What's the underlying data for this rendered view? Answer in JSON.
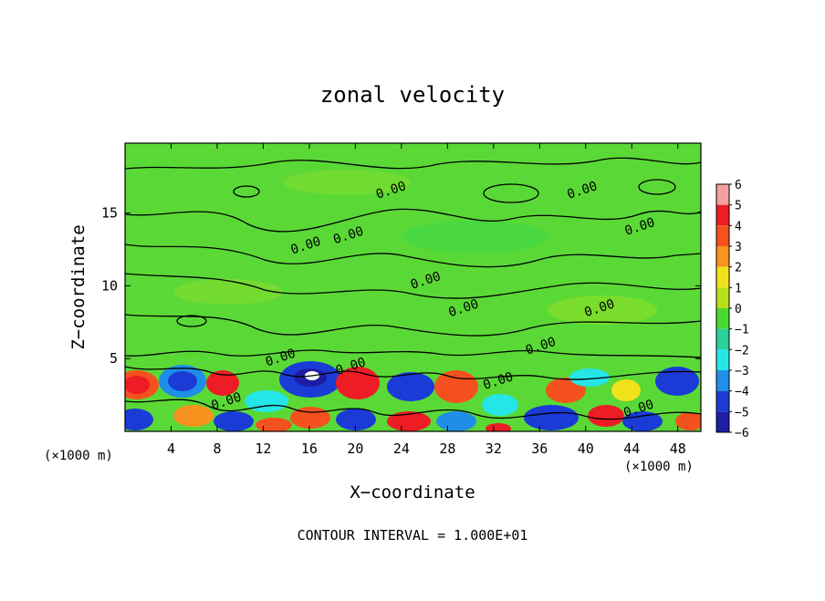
{
  "chart_data": {
    "type": "heatmap",
    "title": "zonal velocity",
    "xlabel": "X−coordinate",
    "ylabel": "Z−coordinate",
    "x_unit_left": "(×1000 m)",
    "x_unit_right": "(×1000 m)",
    "xlim": [
      0,
      50
    ],
    "ylim": [
      0,
      19.8
    ],
    "x_ticks": [
      {
        "value": 4,
        "label": "4"
      },
      {
        "value": 8,
        "label": "8"
      },
      {
        "value": 12,
        "label": "12"
      },
      {
        "value": 16,
        "label": "16"
      },
      {
        "value": 20,
        "label": "20"
      },
      {
        "value": 24,
        "label": "24"
      },
      {
        "value": 28,
        "label": "28"
      },
      {
        "value": 32,
        "label": "32"
      },
      {
        "value": 36,
        "label": "36"
      },
      {
        "value": 40,
        "label": "40"
      },
      {
        "value": 44,
        "label": "44"
      },
      {
        "value": 48,
        "label": "48"
      }
    ],
    "y_ticks": [
      {
        "value": 5,
        "label": "5"
      },
      {
        "value": 10,
        "label": "10"
      },
      {
        "value": 15,
        "label": "15"
      }
    ],
    "colorbar": {
      "levels": [
        {
          "value": 6,
          "label": "6",
          "color": "#f4a0a0"
        },
        {
          "value": 5,
          "label": "5",
          "color": "#ee1c24"
        },
        {
          "value": 4,
          "label": "4",
          "color": "#f5511f"
        },
        {
          "value": 3,
          "label": "3",
          "color": "#f7931e"
        },
        {
          "value": 2,
          "label": "2",
          "color": "#f2e21a"
        },
        {
          "value": 1,
          "label": "1",
          "color": "#b7e01c"
        },
        {
          "value": 0,
          "label": "0",
          "color": "#4cd92f"
        },
        {
          "value": -1,
          "label": "−1",
          "color": "#2ad19a"
        },
        {
          "value": -2,
          "label": "−2",
          "color": "#24e6e6"
        },
        {
          "value": -3,
          "label": "−3",
          "color": "#1f8ee8"
        },
        {
          "value": -4,
          "label": "−4",
          "color": "#1a3bd6"
        },
        {
          "value": -5,
          "label": "−5",
          "color": "#1e1ea5"
        },
        {
          "value": -6,
          "label": "−6",
          "color": "#7a0fa2"
        }
      ]
    },
    "contour_labels": [
      {
        "text": "0.00",
        "x": 19.5,
        "z": 13.2
      },
      {
        "text": "0.00",
        "x": 15.8,
        "z": 12.5
      },
      {
        "text": "0.00",
        "x": 23.2,
        "z": 16.3
      },
      {
        "text": "0.00",
        "x": 39.8,
        "z": 16.3
      },
      {
        "text": "0.00",
        "x": 44.8,
        "z": 13.8
      },
      {
        "text": "0.00",
        "x": 26.2,
        "z": 10.1
      },
      {
        "text": "0.00",
        "x": 29.5,
        "z": 8.2
      },
      {
        "text": "0.00",
        "x": 41.3,
        "z": 8.2
      },
      {
        "text": "0.00",
        "x": 36.2,
        "z": 5.6
      },
      {
        "text": "0.00",
        "x": 13.6,
        "z": 4.8
      },
      {
        "text": "0.00",
        "x": 19.7,
        "z": 4.2
      },
      {
        "text": "0.00",
        "x": 32.5,
        "z": 3.2
      },
      {
        "text": "0.00",
        "x": 8.9,
        "z": 1.8
      },
      {
        "text": "0.00",
        "x": 44.7,
        "z": 1.3
      }
    ],
    "note": "CONTOUR INTERVAL = 1.000E+01"
  }
}
